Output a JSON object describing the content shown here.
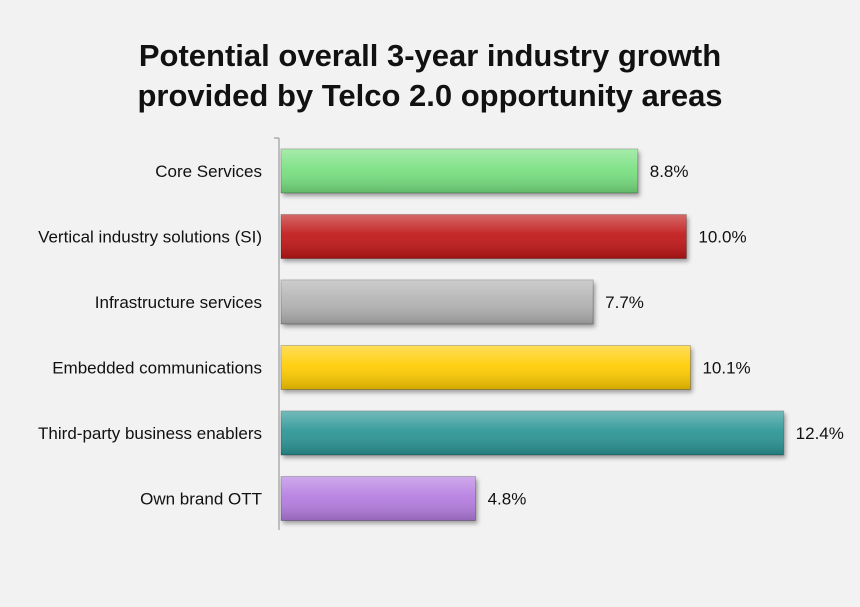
{
  "chart_data": {
    "type": "bar",
    "orientation": "horizontal",
    "title_lines": [
      "Potential overall 3-year industry growth",
      "provided by Telco 2.0 opportunity areas"
    ],
    "categories": [
      "Core Services",
      "Vertical industry solutions (SI)",
      "Infrastructure services",
      "Embedded communications",
      "Third-party business enablers",
      "Own brand OTT"
    ],
    "values": [
      8.8,
      10.0,
      7.7,
      10.1,
      12.4,
      4.8
    ],
    "value_labels": [
      "8.8%",
      "10.0%",
      "7.7%",
      "10.1%",
      "12.4%",
      "4.8%"
    ],
    "colors": [
      "#77e07f",
      "#c01515",
      "#b2b2b2",
      "#ffcc00",
      "#2a9595",
      "#b47ce0"
    ],
    "xlim": [
      0,
      13.0
    ],
    "xlabel": "",
    "ylabel": "",
    "grid": false,
    "legend": "none",
    "background": "#f2f2f2"
  }
}
